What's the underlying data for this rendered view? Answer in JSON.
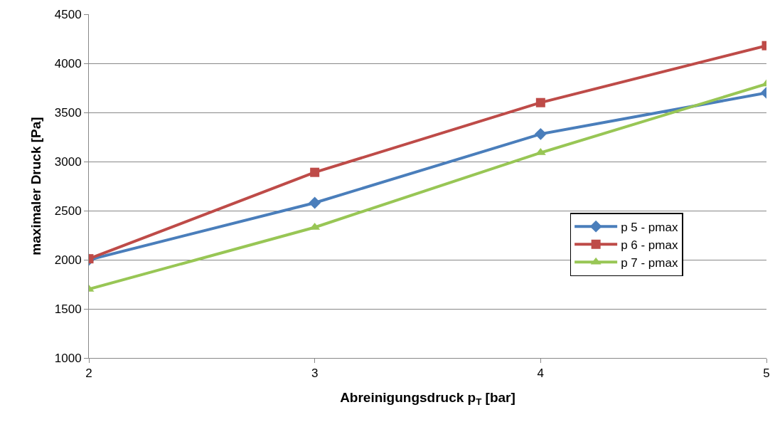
{
  "chart_data": {
    "type": "line",
    "xlabel": "Abreinigungsdruck p$_{T}$ [bar]",
    "ylabel": "maximaler Druck [Pa]",
    "x": [
      2,
      3,
      4,
      5
    ],
    "xlim": [
      2,
      5
    ],
    "xticks": [
      2,
      3,
      4,
      5
    ],
    "ylim": [
      1000,
      4500
    ],
    "yticks": [
      1000,
      1500,
      2000,
      2500,
      3000,
      3500,
      4000,
      4500
    ],
    "grid": "y",
    "legend": "right",
    "line_style": "solid",
    "series": [
      {
        "name": "p 5 - pmax",
        "color": "#4a7ebb",
        "marker": "diamond",
        "values": [
          2000,
          2580,
          3280,
          3700
        ]
      },
      {
        "name": "p 6 - pmax",
        "color": "#be4b48",
        "marker": "square",
        "values": [
          2010,
          2890,
          3600,
          4180
        ]
      },
      {
        "name": "p 7 - pmax",
        "color": "#98c655",
        "marker": "triangle",
        "values": [
          1700,
          2330,
          3090,
          3790
        ]
      }
    ]
  }
}
